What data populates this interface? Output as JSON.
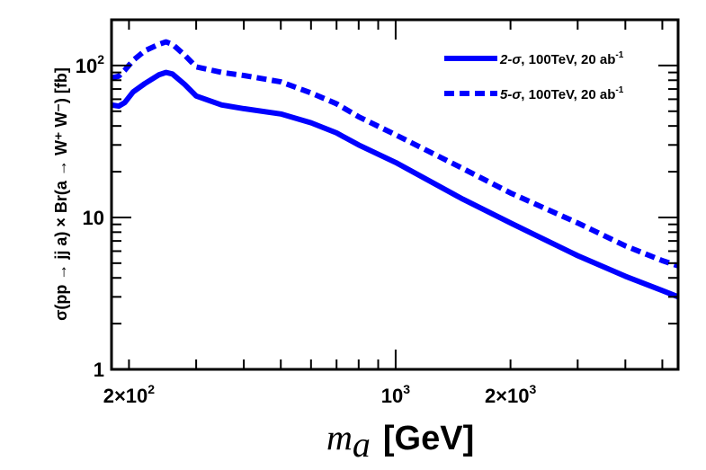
{
  "chart_data": {
    "type": "line",
    "title": "",
    "xlabel": {
      "var": "m",
      "sub": "a",
      "unit": "[GeV]"
    },
    "ylabel": "σ(pp → jj a) × Br(a → W⁺ W⁻) [fb]",
    "xscale": "log",
    "yscale": "log",
    "xlim": [
      180,
      5500
    ],
    "ylim": [
      1,
      200
    ],
    "x_tick_labels": [
      {
        "value": 200,
        "mant": "2×10",
        "exp": "2"
      },
      {
        "value": 1000,
        "mant": "10",
        "exp": "3"
      },
      {
        "value": 2000,
        "mant": "2×10",
        "exp": "3"
      }
    ],
    "y_tick_labels": [
      {
        "value": 1,
        "mant": "1",
        "exp": ""
      },
      {
        "value": 10,
        "mant": "10",
        "exp": ""
      },
      {
        "value": 100,
        "mant": "10",
        "exp": "2"
      }
    ],
    "legend_position": "top-right",
    "series": [
      {
        "name": "2-σ, 100TeV, 20 ab-1",
        "legend": {
          "sig": "2-σ",
          "rest": ", 100TeV, 20 ab",
          "sup": "-1"
        },
        "style": "solid",
        "color": "#0000ff",
        "x": [
          180,
          188,
          195,
          205,
          220,
          240,
          250,
          260,
          280,
          300,
          350,
          400,
          500,
          600,
          700,
          800,
          1000,
          1500,
          2000,
          3000,
          4000,
          5000,
          5500
        ],
        "y": [
          55,
          54,
          57,
          67,
          76,
          87,
          90,
          88,
          75,
          63,
          55,
          52,
          48,
          42,
          36,
          30,
          23,
          13.2,
          9.2,
          5.6,
          4.1,
          3.3,
          3.0
        ]
      },
      {
        "name": "5-σ, 100TeV, 20 ab-1",
        "legend": {
          "sig": "5-σ",
          "rest": ", 100TeV, 20 ab",
          "sup": "-1"
        },
        "style": "dashed",
        "color": "#0000ff",
        "x": [
          180,
          188,
          195,
          205,
          220,
          240,
          250,
          260,
          280,
          300,
          350,
          400,
          500,
          600,
          700,
          800,
          1000,
          1500,
          2000,
          3000,
          4000,
          5000,
          5500
        ],
        "y": [
          83,
          85,
          93,
          108,
          125,
          138,
          143,
          138,
          117,
          98,
          90,
          86,
          78,
          66,
          56,
          46,
          35,
          21,
          14.5,
          9.2,
          6.5,
          5.2,
          4.8
        ]
      }
    ]
  }
}
